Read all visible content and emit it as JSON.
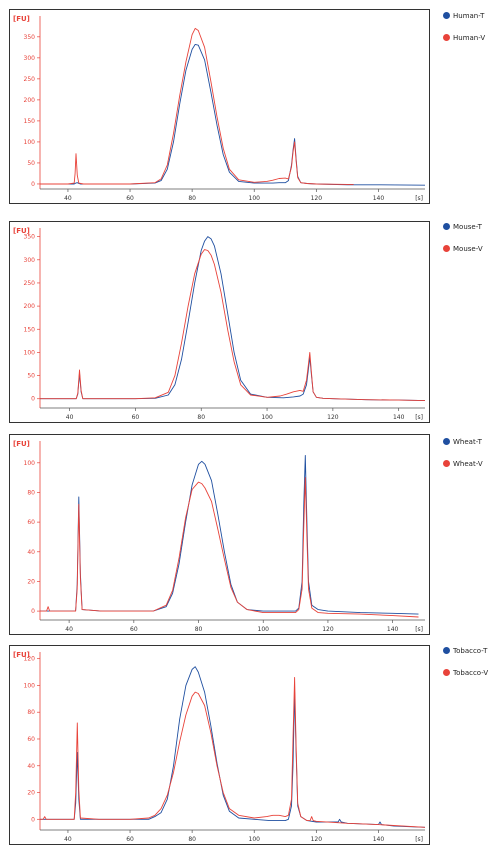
{
  "chart_data": [
    {
      "type": "line",
      "y_unit": "[FU]",
      "x_unit": "[s]",
      "xlim": [
        31,
        155
      ],
      "ylim": [
        -12,
        390
      ],
      "x_ticks": [
        40,
        60,
        80,
        100,
        120,
        140
      ],
      "y_ticks": [
        0,
        50,
        100,
        150,
        200,
        250,
        300,
        350
      ],
      "series": [
        {
          "name": "Human-T",
          "color": "#1f4fa0",
          "x": [
            31,
            40,
            42,
            42.5,
            43,
            43.5,
            44,
            50,
            60,
            68,
            70,
            72,
            74,
            76,
            78,
            80,
            81,
            82,
            84,
            86,
            88,
            90,
            92,
            95,
            100,
            104,
            106,
            108,
            110,
            111,
            112,
            112.5,
            113,
            113.5,
            114,
            115,
            117,
            120,
            130,
            140,
            155
          ],
          "y": [
            0,
            0,
            0,
            2,
            3,
            1,
            0,
            0,
            0,
            2,
            8,
            35,
            100,
            190,
            270,
            320,
            332,
            330,
            295,
            220,
            140,
            70,
            28,
            6,
            2,
            2,
            2,
            3,
            3,
            8,
            45,
            80,
            108,
            60,
            18,
            3,
            1,
            0,
            -2,
            -2,
            -3
          ]
        },
        {
          "name": "Human-V",
          "color": "#e8433a",
          "x": [
            31,
            40,
            42,
            42.3,
            42.6,
            43,
            43.5,
            45,
            50,
            60,
            68,
            70,
            72,
            74,
            76,
            78,
            80,
            81,
            82,
            84,
            86,
            88,
            90,
            92,
            95,
            100,
            104,
            106,
            108,
            110,
            111,
            112,
            112.5,
            113,
            113.5,
            114,
            115,
            117,
            120,
            130,
            132
          ],
          "y": [
            0,
            0,
            2,
            25,
            72,
            20,
            2,
            0,
            0,
            0,
            3,
            12,
            45,
            120,
            210,
            290,
            355,
            370,
            365,
            325,
            245,
            160,
            85,
            35,
            10,
            4,
            6,
            9,
            13,
            14,
            12,
            40,
            75,
            100,
            55,
            15,
            3,
            1,
            0,
            -1,
            -1
          ]
        }
      ]
    },
    {
      "type": "line",
      "y_unit": "[FU]",
      "x_unit": "[s]",
      "xlim": [
        31,
        148
      ],
      "ylim": [
        -20,
        360
      ],
      "x_ticks": [
        40,
        60,
        80,
        100,
        120,
        140
      ],
      "y_ticks": [
        0,
        50,
        100,
        150,
        200,
        250,
        300,
        350
      ],
      "series": [
        {
          "name": "Mouse-T",
          "color": "#1f4fa0",
          "x": [
            31,
            40,
            42,
            42.5,
            43,
            43.5,
            44,
            50,
            60,
            66,
            70,
            72,
            74,
            76,
            78,
            80,
            81,
            82,
            83,
            84,
            86,
            88,
            90,
            92,
            95,
            100,
            105,
            108,
            110,
            111,
            112,
            112.5,
            113,
            113.5,
            114,
            115,
            117,
            120,
            130,
            140,
            148
          ],
          "y": [
            0,
            0,
            0,
            10,
            55,
            15,
            0,
            0,
            0,
            1,
            8,
            30,
            85,
            165,
            250,
            320,
            340,
            350,
            345,
            330,
            270,
            185,
            100,
            40,
            10,
            3,
            2,
            4,
            6,
            10,
            30,
            60,
            90,
            50,
            15,
            3,
            1,
            0,
            -2,
            -3,
            -4
          ]
        },
        {
          "name": "Mouse-V",
          "color": "#e8433a",
          "x": [
            31,
            40,
            42,
            42.5,
            43,
            43.5,
            44,
            50,
            60,
            66,
            70,
            72,
            74,
            76,
            78,
            80,
            81,
            82,
            83,
            84,
            86,
            88,
            90,
            92,
            95,
            100,
            104,
            106,
            108,
            110,
            111,
            112,
            112.5,
            113,
            113.5,
            114,
            115,
            117,
            120,
            130,
            140,
            148
          ],
          "y": [
            0,
            0,
            0,
            12,
            62,
            18,
            0,
            0,
            0,
            2,
            14,
            50,
            120,
            200,
            270,
            312,
            322,
            320,
            310,
            290,
            230,
            150,
            80,
            30,
            8,
            3,
            6,
            10,
            15,
            18,
            16,
            40,
            70,
            100,
            55,
            15,
            3,
            1,
            0,
            -2,
            -3,
            -4
          ]
        }
      ]
    },
    {
      "type": "line",
      "y_unit": "[FU]",
      "x_unit": "[s]",
      "xlim": [
        31,
        150
      ],
      "ylim": [
        -6,
        112
      ],
      "x_ticks": [
        40,
        60,
        80,
        100,
        120,
        140
      ],
      "y_ticks": [
        0,
        20,
        40,
        60,
        80,
        100
      ],
      "series": [
        {
          "name": "Wheat-T",
          "color": "#1f4fa0",
          "x": [
            31,
            40,
            42,
            42.5,
            43,
            43.5,
            44,
            50,
            60,
            66,
            70,
            72,
            74,
            76,
            78,
            80,
            81,
            82,
            84,
            86,
            88,
            90,
            92,
            95,
            100,
            105,
            108,
            110,
            111,
            112,
            112.5,
            113,
            113.5,
            114,
            115,
            117,
            120,
            130,
            140,
            148
          ],
          "y": [
            0,
            0,
            0,
            18,
            77,
            25,
            1,
            0,
            0,
            0,
            3,
            12,
            32,
            60,
            85,
            99,
            101,
            99,
            88,
            65,
            40,
            18,
            6,
            1,
            0,
            0,
            0,
            0,
            2,
            20,
            70,
            105,
            60,
            20,
            4,
            1,
            0,
            -1,
            -1.5,
            -2
          ]
        },
        {
          "name": "Wheat-V",
          "color": "#e8433a",
          "x": [
            31,
            32,
            33,
            33.5,
            34,
            40,
            42,
            42.5,
            43,
            43.5,
            44,
            50,
            60,
            66,
            70,
            72,
            74,
            76,
            78,
            80,
            81,
            82,
            84,
            86,
            88,
            90,
            92,
            95,
            100,
            105,
            108,
            110,
            111,
            112,
            112.5,
            113,
            113.5,
            114,
            115,
            117,
            120,
            130,
            140,
            148
          ],
          "y": [
            0,
            0,
            0,
            3,
            0,
            0,
            0,
            15,
            72,
            22,
            1,
            0,
            0,
            0,
            4,
            14,
            36,
            63,
            82,
            87,
            86,
            83,
            74,
            55,
            35,
            16,
            6,
            1,
            -1,
            -1,
            -1,
            -1,
            1,
            15,
            55,
            90,
            50,
            15,
            2,
            -1,
            -1.5,
            -2,
            -3,
            -4
          ]
        }
      ]
    },
    {
      "type": "line",
      "y_unit": "[FU]",
      "x_unit": "[s]",
      "xlim": [
        31,
        155
      ],
      "ylim": [
        -8,
        122
      ],
      "x_ticks": [
        40,
        60,
        80,
        100,
        120,
        140
      ],
      "y_ticks": [
        0,
        20,
        40,
        60,
        80,
        100,
        120
      ],
      "series": [
        {
          "name": "Tobacco-T",
          "color": "#1f4fa0",
          "x": [
            31,
            40,
            42,
            42.5,
            43,
            43.5,
            44,
            50,
            60,
            66,
            68,
            70,
            72,
            74,
            76,
            78,
            80,
            81,
            82,
            84,
            86,
            88,
            90,
            92,
            95,
            100,
            105,
            110,
            111,
            112,
            112.5,
            113,
            113.5,
            114,
            115,
            117,
            120,
            127,
            127.5,
            128,
            130,
            140,
            140.5,
            141,
            145,
            155
          ],
          "y": [
            0,
            0,
            0,
            12,
            50,
            15,
            0,
            0,
            0,
            0,
            2,
            5,
            15,
            40,
            75,
            100,
            112,
            114,
            110,
            95,
            70,
            42,
            18,
            6,
            1,
            0,
            -1,
            -1,
            0,
            10,
            40,
            95,
            50,
            10,
            2,
            -1,
            -2,
            -2,
            0,
            -2,
            -3,
            -4,
            -2,
            -4,
            -5,
            -6
          ]
        },
        {
          "name": "Tobacco-V",
          "color": "#e8433a",
          "x": [
            31,
            32,
            32.5,
            33,
            40,
            42,
            42.5,
            43,
            43.5,
            44,
            50,
            60,
            66,
            68,
            70,
            72,
            74,
            76,
            78,
            80,
            81,
            82,
            84,
            86,
            88,
            90,
            92,
            95,
            100,
            104,
            106,
            108,
            110,
            111,
            112,
            112.5,
            113,
            113.5,
            114,
            115,
            117,
            118,
            118.5,
            119,
            120,
            130,
            140,
            155
          ],
          "y": [
            0,
            0,
            2,
            0,
            0,
            0,
            20,
            72,
            22,
            1,
            0,
            0,
            1,
            3,
            8,
            18,
            35,
            58,
            78,
            92,
            95,
            94,
            85,
            65,
            40,
            20,
            8,
            3,
            1,
            2,
            3,
            3,
            2,
            3,
            15,
            60,
            106,
            55,
            12,
            2,
            -1,
            -1,
            2,
            -1,
            -1.5,
            -3,
            -4,
            -6
          ]
        }
      ]
    }
  ]
}
